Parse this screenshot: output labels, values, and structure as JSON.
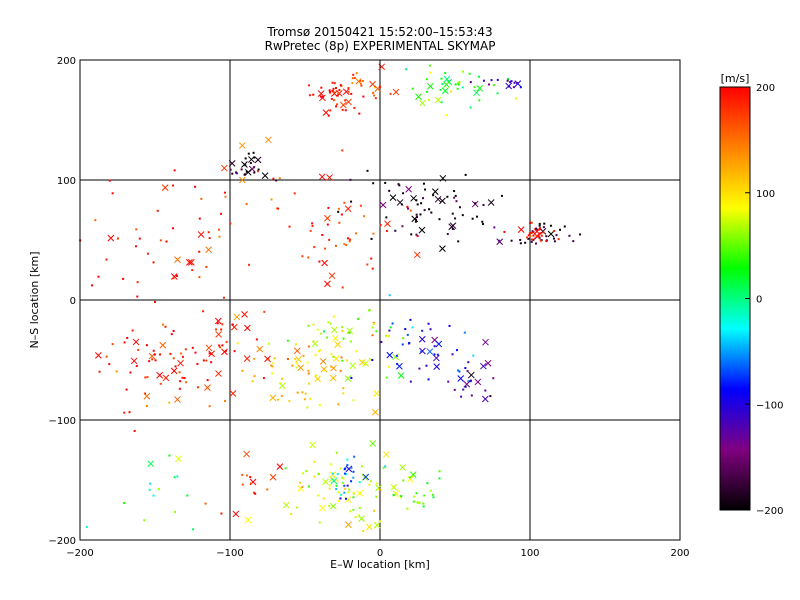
{
  "chart_data": {
    "type": "scatter",
    "title": "Tromsø 20150421 15:52:00–15:53:43",
    "subtitle": "RwPretec (8p) EXPERIMENTAL SKYMAP",
    "xlabel": "E–W location [km]",
    "ylabel": "N–S location [km]",
    "xlim": [
      -200,
      200
    ],
    "ylim": [
      -200,
      200
    ],
    "xticks": [
      -200,
      -100,
      0,
      100,
      200
    ],
    "yticks": [
      -200,
      -100,
      0,
      100,
      200
    ],
    "grid": true,
    "colorbar": {
      "label": "[m/s]",
      "min": -200,
      "max": 200,
      "ticks": [
        200,
        100,
        0,
        -100,
        -200
      ],
      "colors": [
        "#000000",
        "#800080",
        "#0000ff",
        "#00ffff",
        "#00ff00",
        "#ffff00",
        "#ff8000",
        "#ff0000"
      ]
    },
    "clusters": [
      {
        "cx": -70,
        "cy": 80,
        "sx": 60,
        "sy": 40,
        "v": 180,
        "n": 40
      },
      {
        "cx": -20,
        "cy": 50,
        "sx": 40,
        "sy": 30,
        "v": 190,
        "n": 30
      },
      {
        "cx": -140,
        "cy": 40,
        "sx": 40,
        "sy": 40,
        "v": 195,
        "n": 40
      },
      {
        "cx": -150,
        "cy": -55,
        "sx": 30,
        "sy": 25,
        "v": 190,
        "n": 60
      },
      {
        "cx": -110,
        "cy": -40,
        "sx": 25,
        "sy": 25,
        "v": 185,
        "n": 35
      },
      {
        "cx": -30,
        "cy": 170,
        "sx": 12,
        "sy": 10,
        "v": 195,
        "n": 45
      },
      {
        "cx": -7,
        "cy": 178,
        "sx": 12,
        "sy": 8,
        "v": 170,
        "n": 20
      },
      {
        "cx": 50,
        "cy": 175,
        "sx": 25,
        "sy": 12,
        "v": 40,
        "n": 40
      },
      {
        "cx": 85,
        "cy": 180,
        "sx": 12,
        "sy": 5,
        "v": -120,
        "n": 15
      },
      {
        "cx": -90,
        "cy": 110,
        "sx": 10,
        "sy": 8,
        "v": -195,
        "n": 25
      },
      {
        "cx": 30,
        "cy": 75,
        "sx": 30,
        "sy": 22,
        "v": -195,
        "n": 70
      },
      {
        "cx": 105,
        "cy": 55,
        "sx": 15,
        "sy": 8,
        "v": -180,
        "n": 35
      },
      {
        "cx": 100,
        "cy": 55,
        "sx": 10,
        "sy": 7,
        "v": 190,
        "n": 25
      },
      {
        "cx": -50,
        "cy": -60,
        "sx": 35,
        "sy": 25,
        "v": 110,
        "n": 70
      },
      {
        "cx": -20,
        "cy": -30,
        "sx": 25,
        "sy": 20,
        "v": 60,
        "n": 40
      },
      {
        "cx": 30,
        "cy": -40,
        "sx": 25,
        "sy": 25,
        "v": -90,
        "n": 45
      },
      {
        "cx": 60,
        "cy": -70,
        "sx": 15,
        "sy": 15,
        "v": -140,
        "n": 20
      },
      {
        "cx": -30,
        "cy": -160,
        "sx": 30,
        "sy": 25,
        "v": 80,
        "n": 70
      },
      {
        "cx": -20,
        "cy": -150,
        "sx": 10,
        "sy": 10,
        "v": -50,
        "n": 25
      },
      {
        "cx": -150,
        "cy": -160,
        "sx": 20,
        "sy": 20,
        "v": 10,
        "n": 15
      },
      {
        "cx": -90,
        "cy": -155,
        "sx": 15,
        "sy": 15,
        "v": 185,
        "n": 15
      },
      {
        "cx": 20,
        "cy": -160,
        "sx": 15,
        "sy": 20,
        "v": 50,
        "n": 25
      }
    ]
  }
}
